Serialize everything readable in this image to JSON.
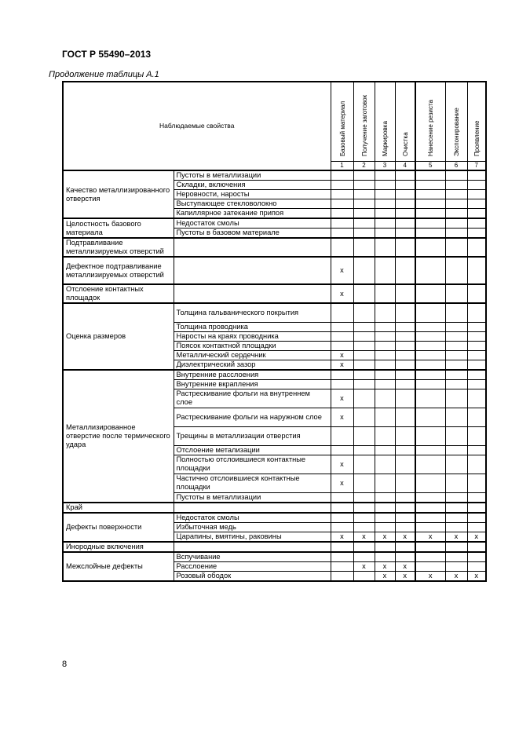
{
  "header": {
    "doc_id": "ГОСТ Р 55490–2013",
    "caption": "Продолжение таблицы А.1"
  },
  "table": {
    "main_header": "Наблюдаемые свойства",
    "columns": [
      "Базовый материал",
      "Получение заготовок",
      "Маркировка",
      "Очистка",
      "Нанесение резиста",
      "Экспонирование",
      "Проявление"
    ],
    "column_numbers": [
      "1",
      "2",
      "3",
      "4",
      "5",
      "6",
      "7"
    ],
    "groups": [
      {
        "name": "Качество металлизированного отверстия",
        "rows": [
          {
            "property": "Пустоты в металлизации",
            "marks": [
              "",
              "",
              "",
              "",
              "",
              "",
              ""
            ]
          },
          {
            "property": "Складки, включения",
            "marks": [
              "",
              "",
              "",
              "",
              "",
              "",
              ""
            ]
          },
          {
            "property": "Неровности, наросты",
            "marks": [
              "",
              "",
              "",
              "",
              "",
              "",
              ""
            ]
          },
          {
            "property": "Выступающее стекловолокно",
            "marks": [
              "",
              "",
              "",
              "",
              "",
              "",
              ""
            ]
          },
          {
            "property": "Капиллярное затекание припоя",
            "marks": [
              "",
              "",
              "",
              "",
              "",
              "",
              ""
            ]
          }
        ]
      },
      {
        "name": "Целостность базового материала",
        "rows": [
          {
            "property": "Недостаток смолы",
            "marks": [
              "",
              "",
              "",
              "",
              "",
              "",
              ""
            ]
          },
          {
            "property": "Пустоты в базовом материале",
            "marks": [
              "",
              "",
              "",
              "",
              "",
              "",
              ""
            ]
          }
        ]
      },
      {
        "name": "Подтравливание металлизируемых отверстий",
        "rows": [
          {
            "property": "",
            "marks": [
              "",
              "",
              "",
              "",
              "",
              "",
              ""
            ]
          }
        ]
      },
      {
        "name": "Дефектное подтравливание металлизируемых отверстий",
        "rows": [
          {
            "property": "",
            "marks": [
              "x",
              "",
              "",
              "",
              "",
              "",
              ""
            ]
          }
        ]
      },
      {
        "name": "Отслоение контактных площадок",
        "rows": [
          {
            "property": "",
            "marks": [
              "x",
              "",
              "",
              "",
              "",
              "",
              ""
            ]
          }
        ]
      },
      {
        "name": "Оценка размеров",
        "rows": [
          {
            "property": "Толщина гальванического покрытия",
            "marks": [
              "",
              "",
              "",
              "",
              "",
              "",
              ""
            ]
          },
          {
            "property": "Толщина проводника",
            "marks": [
              "",
              "",
              "",
              "",
              "",
              "",
              ""
            ]
          },
          {
            "property": "Наросты на краях проводника",
            "marks": [
              "",
              "",
              "",
              "",
              "",
              "",
              ""
            ]
          },
          {
            "property": "Поясок контактной площадки",
            "marks": [
              "",
              "",
              "",
              "",
              "",
              "",
              ""
            ]
          },
          {
            "property": "Металлический сердечник",
            "marks": [
              "x",
              "",
              "",
              "",
              "",
              "",
              ""
            ]
          },
          {
            "property": "Диэлектрический зазор",
            "marks": [
              "x",
              "",
              "",
              "",
              "",
              "",
              ""
            ]
          }
        ]
      },
      {
        "name": "Металлизированное отверстие после термического удара",
        "rows": [
          {
            "property": "Внутренние расслоения",
            "marks": [
              "",
              "",
              "",
              "",
              "",
              "",
              ""
            ]
          },
          {
            "property": "Внутренние вкрапления",
            "marks": [
              "",
              "",
              "",
              "",
              "",
              "",
              ""
            ]
          },
          {
            "property": "Растрескивание фольги на внутреннем слое",
            "marks": [
              "x",
              "",
              "",
              "",
              "",
              "",
              ""
            ]
          },
          {
            "property": "Растрескивание фольги на наружном слое",
            "marks": [
              "x",
              "",
              "",
              "",
              "",
              "",
              ""
            ]
          },
          {
            "property": "Трещины в металлизации отверстия",
            "marks": [
              "",
              "",
              "",
              "",
              "",
              "",
              ""
            ]
          },
          {
            "property": "Отслоение метализации",
            "marks": [
              "",
              "",
              "",
              "",
              "",
              "",
              ""
            ]
          },
          {
            "property": "Полностью отслоившиеся контактные площадки",
            "marks": [
              "x",
              "",
              "",
              "",
              "",
              "",
              ""
            ]
          },
          {
            "property": "Частично отслоившиеся контактные площадки",
            "marks": [
              "x",
              "",
              "",
              "",
              "",
              "",
              ""
            ]
          },
          {
            "property": "Пустоты в металлизации",
            "marks": [
              "",
              "",
              "",
              "",
              "",
              "",
              ""
            ]
          }
        ]
      },
      {
        "name": "Край",
        "rows": [
          {
            "property": "",
            "marks": [
              "",
              "",
              "",
              "",
              "",
              "",
              ""
            ]
          }
        ]
      },
      {
        "name": "Дефекты поверхности",
        "rows": [
          {
            "property": "Недостаток смолы",
            "marks": [
              "",
              "",
              "",
              "",
              "",
              "",
              ""
            ]
          },
          {
            "property": "Избыточная медь",
            "marks": [
              "",
              "",
              "",
              "",
              "",
              "",
              ""
            ]
          },
          {
            "property": "Царапины, вмятины, раковины",
            "marks": [
              "x",
              "x",
              "x",
              "x",
              "x",
              "x",
              "x"
            ]
          }
        ]
      },
      {
        "name": "Инородные включения",
        "rows": [
          {
            "property": "",
            "marks": [
              "",
              "",
              "",
              "",
              "",
              "",
              ""
            ]
          }
        ]
      },
      {
        "name": "Межслойные дефекты",
        "rows": [
          {
            "property": "Вспучивание",
            "marks": [
              "",
              "",
              "",
              "",
              "",
              "",
              ""
            ]
          },
          {
            "property": "Расслоение",
            "marks": [
              "",
              "x",
              "x",
              "x",
              "",
              "",
              ""
            ]
          },
          {
            "property": "Розовый ободок",
            "marks": [
              "",
              "",
              "x",
              "x",
              "x",
              "x",
              "x"
            ]
          }
        ]
      }
    ]
  },
  "footer": {
    "page_number": "8"
  }
}
